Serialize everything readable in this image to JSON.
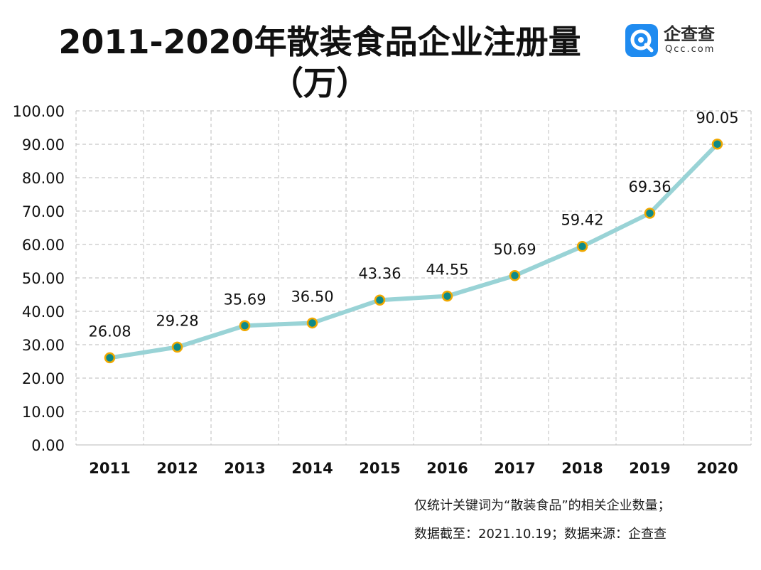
{
  "title": "2011-2020年散装食品企业注册量（万）",
  "brand": {
    "name": "企查查",
    "sub": "Qcc.com"
  },
  "colors": {
    "line": "#99d3d6",
    "marker_fill": "#0e8a88",
    "marker_edge": "#f0a800",
    "grid": "#c8c8c8"
  },
  "chart_data": {
    "type": "line",
    "title": "2011-2020年散装食品企业注册量（万）",
    "categories": [
      "2011",
      "2012",
      "2013",
      "2014",
      "2015",
      "2016",
      "2017",
      "2018",
      "2019",
      "2020"
    ],
    "values": [
      26.08,
      29.28,
      35.69,
      36.5,
      43.36,
      44.55,
      50.69,
      59.42,
      69.36,
      90.05
    ],
    "value_labels": [
      "26.08",
      "29.28",
      "35.69",
      "36.50",
      "43.36",
      "44.55",
      "50.69",
      "59.42",
      "69.36",
      "90.05"
    ],
    "ylim": [
      0,
      100
    ],
    "yticks": [
      "0.00",
      "10.00",
      "20.00",
      "30.00",
      "40.00",
      "50.00",
      "60.00",
      "70.00",
      "80.00",
      "90.00",
      "100.00"
    ],
    "grid": true,
    "legend": "none"
  },
  "footnotes": [
    "仅统计关键词为“散装食品”的相关企业数量；",
    "数据截至：2021.10.19；数据来源：企查查"
  ]
}
